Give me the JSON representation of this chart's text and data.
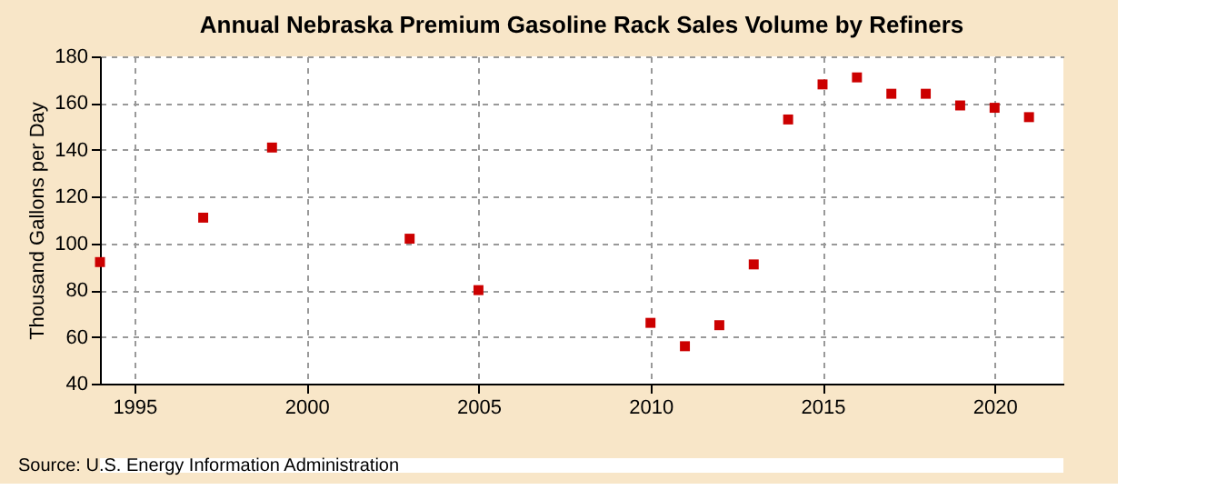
{
  "chart_data": {
    "type": "scatter",
    "title": "Annual Nebraska Premium Gasoline Rack Sales Volume by Refiners",
    "ylabel": "Thousand Gallons per Day",
    "x": [
      1994,
      1997,
      1999,
      2003,
      2005,
      2010,
      2011,
      2012,
      2013,
      2014,
      2015,
      2016,
      2017,
      2018,
      2019,
      2020,
      2021
    ],
    "series": [
      {
        "color": "#cc0000",
        "values": [
          92,
          111,
          141,
          102,
          80,
          66,
          56,
          65,
          91,
          153,
          168,
          171,
          164,
          164,
          159,
          158,
          154
        ]
      }
    ],
    "xlim": [
      1994,
      2022
    ],
    "xticks": [
      1995,
      2000,
      2005,
      2010,
      2015,
      2020
    ],
    "ylim": [
      40,
      180
    ],
    "yticks": [
      40,
      60,
      80,
      100,
      120,
      140,
      160,
      180
    ],
    "grid": true,
    "marker": "square",
    "annotations": [
      "Source: U.S. Energy Information Administration"
    ]
  }
}
